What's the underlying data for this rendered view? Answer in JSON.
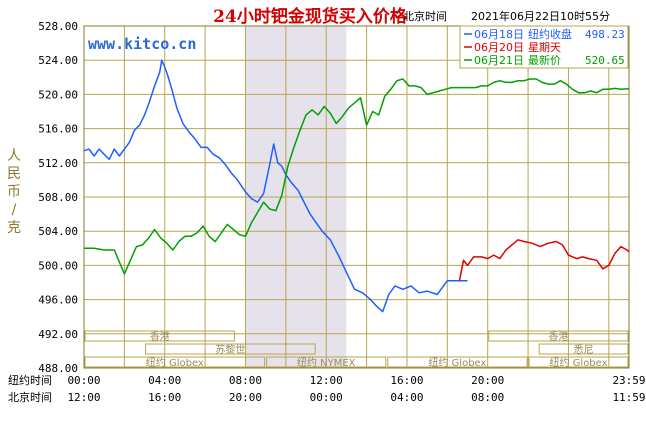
{
  "chart_data": {
    "type": "line",
    "title": "24小时钯金现货买入价格",
    "timestamp_label": "北京时间",
    "timestamp": "2021年06月22日10时55分",
    "watermark": "www.kitco.cn",
    "ylabel": "人民币/克",
    "ylim": [
      488,
      528
    ],
    "yticks": [
      "528.00",
      "524.00",
      "520.00",
      "516.00",
      "512.00",
      "508.00",
      "504.00",
      "500.00",
      "496.00",
      "492.00",
      "488.00"
    ],
    "x_axis_rows": [
      {
        "label": "纽约时间",
        "ticks": [
          "00:00",
          "04:00",
          "08:00",
          "12:00",
          "16:00",
          "20:00",
          "23:59"
        ]
      },
      {
        "label": "北京时间",
        "ticks": [
          "12:00",
          "16:00",
          "20:00",
          "00:00",
          "04:00",
          "08:00",
          "11:59"
        ]
      }
    ],
    "legend": [
      {
        "date": "06月18日",
        "desc": "纽约收盘",
        "value": "498.23",
        "color": "#1f5fff"
      },
      {
        "date": "06月20日",
        "desc": "星期天",
        "value": "",
        "color": "#e00000"
      },
      {
        "date": "06月21日",
        "desc": "最新价",
        "value": "520.65",
        "color": "#00a000"
      }
    ],
    "market_bars": [
      {
        "label": "香港",
        "row": 0
      },
      {
        "label": "苏黎世",
        "row": 1
      },
      {
        "label": "纽约 Globex",
        "row": 2
      },
      {
        "label": "纽约 NYMEX",
        "row": 2
      },
      {
        "label": "纽约 Globex",
        "row": 2
      },
      {
        "label": "香港",
        "row": 0
      },
      {
        "label": "悉尼",
        "row": 1
      },
      {
        "label": "纽约 Globex",
        "row": 2
      }
    ],
    "shaded_x_range": [
      8.0,
      13.0
    ],
    "series": [
      {
        "name": "06月18日",
        "color": "#1f5fff",
        "points": [
          [
            0.0,
            513.4
          ],
          [
            0.25,
            513.6
          ],
          [
            0.5,
            512.8
          ],
          [
            0.75,
            513.6
          ],
          [
            1.0,
            513.0
          ],
          [
            1.25,
            512.4
          ],
          [
            1.5,
            513.6
          ],
          [
            1.75,
            512.8
          ],
          [
            2.0,
            513.6
          ],
          [
            2.25,
            514.4
          ],
          [
            2.5,
            515.8
          ],
          [
            2.75,
            516.4
          ],
          [
            3.0,
            517.6
          ],
          [
            3.25,
            519.2
          ],
          [
            3.5,
            521.0
          ],
          [
            3.75,
            522.6
          ],
          [
            3.85,
            524.0
          ],
          [
            4.0,
            523.2
          ],
          [
            4.15,
            522.2
          ],
          [
            4.35,
            520.6
          ],
          [
            4.6,
            518.4
          ],
          [
            4.9,
            516.6
          ],
          [
            5.2,
            515.6
          ],
          [
            5.5,
            514.8
          ],
          [
            5.8,
            513.8
          ],
          [
            6.1,
            513.8
          ],
          [
            6.4,
            513.0
          ],
          [
            6.7,
            512.6
          ],
          [
            7.0,
            511.8
          ],
          [
            7.3,
            510.8
          ],
          [
            7.6,
            510.0
          ],
          [
            8.0,
            508.6
          ],
          [
            8.3,
            507.8
          ],
          [
            8.6,
            507.4
          ],
          [
            8.9,
            508.4
          ],
          [
            9.2,
            511.8
          ],
          [
            9.4,
            514.2
          ],
          [
            9.6,
            512.0
          ],
          [
            9.8,
            511.6
          ],
          [
            10.0,
            510.6
          ],
          [
            10.3,
            509.6
          ],
          [
            10.6,
            508.8
          ],
          [
            10.9,
            507.4
          ],
          [
            11.2,
            506.0
          ],
          [
            11.5,
            505.0
          ],
          [
            11.8,
            504.0
          ],
          [
            12.2,
            503.0
          ],
          [
            12.6,
            501.2
          ],
          [
            13.0,
            499.2
          ],
          [
            13.4,
            497.2
          ],
          [
            13.8,
            496.8
          ],
          [
            14.2,
            496.0
          ],
          [
            14.5,
            495.2
          ],
          [
            14.8,
            494.6
          ],
          [
            15.1,
            496.6
          ],
          [
            15.4,
            497.6
          ],
          [
            15.8,
            497.2
          ],
          [
            16.2,
            497.6
          ],
          [
            16.6,
            496.8
          ],
          [
            17.0,
            497.0
          ],
          [
            17.5,
            496.6
          ],
          [
            18.0,
            498.2
          ],
          [
            18.5,
            498.2
          ],
          [
            19.0,
            498.2
          ]
        ]
      },
      {
        "name": "06月20日",
        "color": "#e00000",
        "points": [
          [
            18.6,
            498.2
          ],
          [
            18.8,
            500.6
          ],
          [
            19.0,
            500.0
          ],
          [
            19.3,
            501.0
          ],
          [
            19.7,
            501.0
          ],
          [
            20.0,
            500.8
          ],
          [
            20.3,
            501.2
          ],
          [
            20.6,
            500.8
          ],
          [
            20.9,
            501.8
          ],
          [
            21.2,
            502.4
          ],
          [
            21.5,
            503.0
          ],
          [
            21.8,
            502.8
          ],
          [
            22.2,
            502.6
          ],
          [
            22.6,
            502.2
          ],
          [
            23.0,
            502.6
          ],
          [
            23.4,
            502.8
          ],
          [
            23.7,
            502.4
          ],
          [
            24.0,
            501.2
          ],
          [
            24.4,
            500.8
          ],
          [
            24.7,
            501.0
          ],
          [
            25.0,
            500.8
          ],
          [
            25.4,
            500.6
          ],
          [
            25.7,
            499.6
          ],
          [
            26.0,
            500.0
          ],
          [
            26.3,
            501.4
          ],
          [
            26.6,
            502.2
          ],
          [
            26.9,
            501.8
          ],
          [
            27.0,
            501.6
          ]
        ]
      },
      {
        "name": "06月21日",
        "color": "#00a000",
        "points": [
          [
            0.0,
            502.0
          ],
          [
            0.5,
            502.0
          ],
          [
            1.0,
            501.8
          ],
          [
            1.5,
            501.8
          ],
          [
            2.0,
            499.0
          ],
          [
            2.3,
            500.6
          ],
          [
            2.6,
            502.2
          ],
          [
            2.9,
            502.4
          ],
          [
            3.2,
            503.2
          ],
          [
            3.5,
            504.2
          ],
          [
            3.8,
            503.2
          ],
          [
            4.1,
            502.6
          ],
          [
            4.4,
            501.8
          ],
          [
            4.7,
            502.8
          ],
          [
            5.0,
            503.4
          ],
          [
            5.3,
            503.4
          ],
          [
            5.6,
            503.8
          ],
          [
            5.9,
            504.6
          ],
          [
            6.2,
            503.4
          ],
          [
            6.5,
            502.8
          ],
          [
            6.8,
            503.8
          ],
          [
            7.1,
            504.8
          ],
          [
            7.4,
            504.2
          ],
          [
            7.7,
            503.6
          ],
          [
            8.0,
            503.4
          ],
          [
            8.3,
            505.0
          ],
          [
            8.6,
            506.2
          ],
          [
            8.9,
            507.4
          ],
          [
            9.2,
            506.6
          ],
          [
            9.5,
            506.4
          ],
          [
            9.8,
            508.2
          ],
          [
            10.1,
            511.6
          ],
          [
            10.4,
            513.8
          ],
          [
            10.7,
            515.8
          ],
          [
            11.0,
            517.6
          ],
          [
            11.3,
            518.2
          ],
          [
            11.6,
            517.6
          ],
          [
            11.9,
            518.6
          ],
          [
            12.2,
            517.8
          ],
          [
            12.5,
            516.6
          ],
          [
            12.8,
            517.4
          ],
          [
            13.1,
            518.4
          ],
          [
            13.4,
            519.0
          ],
          [
            13.7,
            519.6
          ],
          [
            14.0,
            516.4
          ],
          [
            14.3,
            518.0
          ],
          [
            14.6,
            517.6
          ],
          [
            14.9,
            519.8
          ],
          [
            15.2,
            520.6
          ],
          [
            15.5,
            521.6
          ],
          [
            15.8,
            521.8
          ],
          [
            16.1,
            521.0
          ],
          [
            16.4,
            521.0
          ],
          [
            16.7,
            520.8
          ],
          [
            17.0,
            520.0
          ],
          [
            17.3,
            520.2
          ],
          [
            17.6,
            520.4
          ],
          [
            17.9,
            520.6
          ],
          [
            18.2,
            520.8
          ],
          [
            18.5,
            520.8
          ],
          [
            18.8,
            520.8
          ],
          [
            19.1,
            520.8
          ],
          [
            19.4,
            520.8
          ],
          [
            19.7,
            521.0
          ],
          [
            20.0,
            521.0
          ],
          [
            20.3,
            521.4
          ],
          [
            20.6,
            521.6
          ],
          [
            20.9,
            521.4
          ],
          [
            21.2,
            521.4
          ],
          [
            21.5,
            521.6
          ],
          [
            21.8,
            521.6
          ],
          [
            22.1,
            521.8
          ],
          [
            22.4,
            521.8
          ],
          [
            22.7,
            521.4
          ],
          [
            23.0,
            521.2
          ],
          [
            23.3,
            521.2
          ],
          [
            23.6,
            521.6
          ],
          [
            23.9,
            521.2
          ],
          [
            24.2,
            520.6
          ],
          [
            24.5,
            520.2
          ],
          [
            24.8,
            520.2
          ],
          [
            25.1,
            520.4
          ],
          [
            25.4,
            520.2
          ],
          [
            25.7,
            520.6
          ],
          [
            26.0,
            520.6
          ],
          [
            26.3,
            520.7
          ],
          [
            26.6,
            520.6
          ],
          [
            27.0,
            520.65
          ]
        ]
      }
    ]
  }
}
